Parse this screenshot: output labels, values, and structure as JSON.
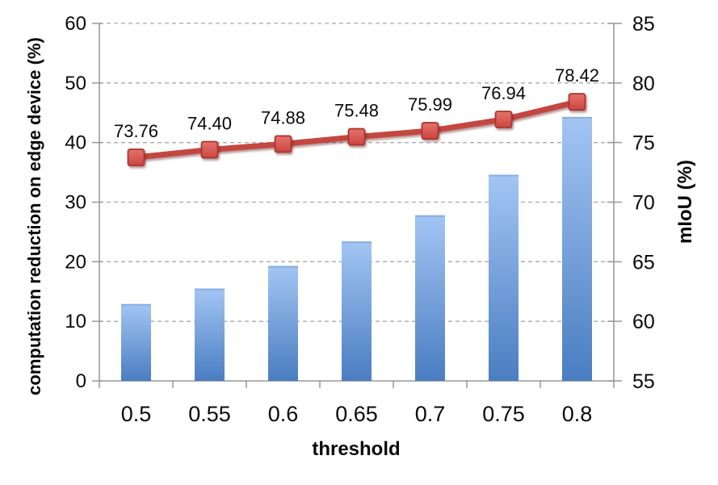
{
  "chart_data": {
    "type": "combo-bar-line",
    "title": "",
    "categories": [
      "0.5",
      "0.55",
      "0.6",
      "0.65",
      "0.7",
      "0.75",
      "0.8"
    ],
    "series": [
      {
        "name": "computation reduction on edge device",
        "type": "bar",
        "axis": "left",
        "values": [
          12.9,
          15.5,
          19.3,
          23.4,
          27.8,
          34.6,
          44.3
        ]
      },
      {
        "name": "mIoU",
        "type": "line",
        "axis": "right",
        "values": [
          73.76,
          74.4,
          74.88,
          75.48,
          75.99,
          76.94,
          78.42
        ],
        "labels": [
          "73.76",
          "74.40",
          "74.88",
          "75.48",
          "75.99",
          "76.94",
          "78.42"
        ]
      }
    ],
    "x_axis": {
      "label": "threshold",
      "tick_labels": [
        "0.5",
        "0.55",
        "0.6",
        "0.65",
        "0.7",
        "0.75",
        "0.8"
      ]
    },
    "left_axis": {
      "label": "computation reduction on edge device (%)",
      "min": 0,
      "max": 60,
      "tick_step": 10,
      "tick_labels": [
        "0",
        "10",
        "20",
        "30",
        "40",
        "50",
        "60"
      ]
    },
    "right_axis": {
      "label": "mIoU (%)",
      "min": 55,
      "max": 85,
      "tick_step": 5,
      "tick_labels": [
        "55",
        "60",
        "65",
        "70",
        "75",
        "80",
        "85"
      ]
    },
    "grid": "dashed-horizontal",
    "legend": "none",
    "colors": {
      "bar_gradient_top": "#a3c5f3",
      "bar_gradient_bottom": "#4a7dc2",
      "bar_top_edge": "#6f99d6",
      "line": "#c3473f",
      "marker_fill_top": "#e4736c",
      "marker_fill_bottom": "#cc4640",
      "marker_stroke": "#a93631",
      "gridline": "#a9a9a9",
      "axis_line": "#999999",
      "text": "#0a0a0a",
      "background": "#ffffff"
    }
  }
}
